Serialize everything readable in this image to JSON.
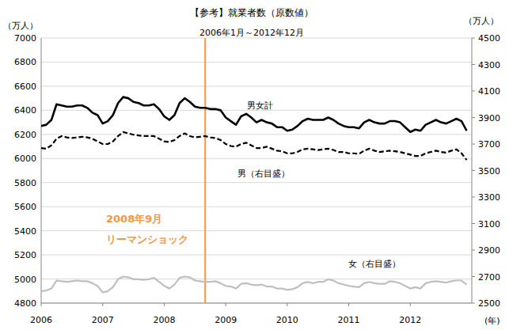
{
  "chart_data": {
    "type": "line",
    "title": "【参考】就業者数（原数値）",
    "subtitle": "2006年1月～2012年12月",
    "y_label": "（万人）",
    "y2_label": "（万人）",
    "x_label": "(年)",
    "categories": [
      "2006",
      null,
      null,
      null,
      null,
      null,
      null,
      null,
      null,
      null,
      null,
      null,
      "2007",
      null,
      null,
      null,
      null,
      null,
      null,
      null,
      null,
      null,
      null,
      null,
      "2008",
      null,
      null,
      null,
      null,
      null,
      null,
      null,
      null,
      null,
      null,
      null,
      "2009",
      null,
      null,
      null,
      null,
      null,
      null,
      null,
      null,
      null,
      null,
      null,
      "2010",
      null,
      null,
      null,
      null,
      null,
      null,
      null,
      null,
      null,
      null,
      null,
      "2011",
      null,
      null,
      null,
      null,
      null,
      null,
      null,
      null,
      null,
      null,
      null,
      "2012",
      null,
      null,
      null,
      null,
      null,
      null,
      null,
      null,
      null,
      null,
      null
    ],
    "series": [
      {
        "name": "男女計",
        "color": "#000000",
        "line_style": "solid",
        "values": [
          6270,
          6280,
          6320,
          6450,
          6440,
          6430,
          6430,
          6440,
          6440,
          6420,
          6380,
          6360,
          6290,
          6310,
          6360,
          6460,
          6510,
          6500,
          6470,
          6460,
          6440,
          6440,
          6450,
          6410,
          6350,
          6320,
          6360,
          6460,
          6500,
          6470,
          6430,
          6420,
          6420,
          6410,
          6410,
          6400,
          6340,
          6310,
          6280,
          6350,
          6370,
          6340,
          6300,
          6320,
          6300,
          6290,
          6260,
          6260,
          6230,
          6240,
          6270,
          6310,
          6330,
          6320,
          6320,
          6320,
          6340,
          6320,
          6290,
          6270,
          6260,
          6260,
          6250,
          6300,
          6320,
          6300,
          6290,
          6290,
          6310,
          6310,
          6300,
          6260,
          6220,
          6240,
          6230,
          6280,
          6300,
          6320,
          6300,
          6290,
          6310,
          6330,
          6310,
          6230
        ]
      },
      {
        "name": "男（右目盛）",
        "color": "#000000",
        "line_style": "dashed",
        "axis": "y2",
        "values": [
          3670,
          3665,
          3690,
          3740,
          3760,
          3750,
          3745,
          3750,
          3755,
          3750,
          3740,
          3720,
          3700,
          3700,
          3720,
          3760,
          3790,
          3780,
          3770,
          3765,
          3760,
          3760,
          3760,
          3740,
          3720,
          3715,
          3730,
          3760,
          3780,
          3760,
          3750,
          3755,
          3760,
          3750,
          3745,
          3730,
          3700,
          3685,
          3680,
          3700,
          3710,
          3690,
          3670,
          3670,
          3680,
          3665,
          3650,
          3645,
          3630,
          3630,
          3640,
          3660,
          3665,
          3660,
          3655,
          3660,
          3665,
          3655,
          3640,
          3640,
          3630,
          3630,
          3625,
          3650,
          3665,
          3650,
          3640,
          3645,
          3650,
          3645,
          3640,
          3630,
          3620,
          3610,
          3610,
          3630,
          3640,
          3650,
          3640,
          3635,
          3650,
          3660,
          3630,
          3580
        ]
      },
      {
        "name": "女（右目盛）",
        "color": "#bfbfbf",
        "line_style": "solid",
        "axis": "y2",
        "values": [
          2590,
          2595,
          2610,
          2670,
          2665,
          2660,
          2665,
          2670,
          2665,
          2665,
          2650,
          2630,
          2580,
          2590,
          2620,
          2680,
          2700,
          2695,
          2680,
          2680,
          2675,
          2680,
          2690,
          2660,
          2630,
          2610,
          2640,
          2690,
          2700,
          2695,
          2670,
          2665,
          2660,
          2660,
          2665,
          2650,
          2630,
          2625,
          2610,
          2645,
          2650,
          2640,
          2635,
          2640,
          2625,
          2625,
          2610,
          2610,
          2600,
          2605,
          2620,
          2650,
          2660,
          2650,
          2660,
          2660,
          2680,
          2670,
          2650,
          2640,
          2630,
          2625,
          2620,
          2650,
          2660,
          2650,
          2645,
          2645,
          2665,
          2660,
          2650,
          2630,
          2610,
          2620,
          2610,
          2650,
          2660,
          2665,
          2660,
          2655,
          2665,
          2670,
          2670,
          2640
        ]
      }
    ],
    "ylim": [
      4800,
      7000
    ],
    "yticks": [
      4800,
      5000,
      5200,
      5400,
      5600,
      5800,
      6000,
      6200,
      6400,
      6600,
      6800,
      7000
    ],
    "y2lim": [
      2500,
      4500
    ],
    "y2ticks": [
      2500,
      2700,
      2900,
      3100,
      3300,
      3500,
      3700,
      3900,
      4100,
      4300,
      4500
    ],
    "grid": true,
    "annotations": [
      {
        "lines": [
          "2008年9月",
          "リーマンショック"
        ],
        "x": 32,
        "color": "#f79646"
      }
    ]
  }
}
